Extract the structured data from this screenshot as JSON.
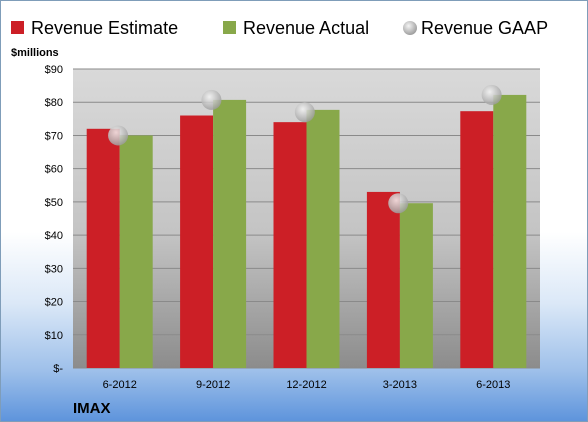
{
  "chart_data": {
    "type": "bar",
    "ylabel": "$millions",
    "ylim": [
      0,
      90
    ],
    "yticks": [
      "$-",
      "$10",
      "$20",
      "$30",
      "$40",
      "$50",
      "$60",
      "$70",
      "$80",
      "$90"
    ],
    "categories": [
      "6-2012",
      "9-2012",
      "12-2012",
      "3-2013",
      "6-2013"
    ],
    "series": [
      {
        "name": "Revenue Estimate",
        "kind": "bar",
        "color": "#cc1f26",
        "values": [
          72,
          76,
          74,
          53,
          77.3
        ]
      },
      {
        "name": "Revenue Actual",
        "kind": "bar",
        "color": "#88a84a",
        "values": [
          70,
          80.7,
          77.7,
          49.6,
          82.2
        ]
      },
      {
        "name": "Revenue GAAP",
        "kind": "marker",
        "color": "#c8c8c8",
        "values": [
          70,
          80.7,
          77,
          49.6,
          82.2
        ]
      }
    ],
    "grid": true,
    "legend": "top",
    "company": "IMAX"
  }
}
